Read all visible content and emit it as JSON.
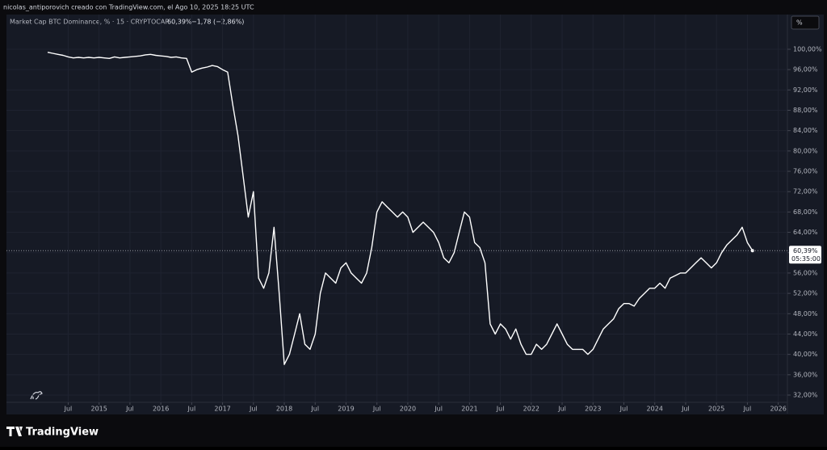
{
  "header": {
    "caption": "nicolas_antiporovich creado con TradingView.com, el Ago 10, 2025 18:25 UTC",
    "brand": "TradingView",
    "scale_button": "%"
  },
  "chart_data": {
    "type": "line",
    "title": "Market Cap BTC Dominance, % · 15 · CRYPTOCAP",
    "current": {
      "value": 60.39,
      "label": "60,39%"
    },
    "change": "−1,78 (−2,86%)",
    "countdown": "05:35:00",
    "grid": true,
    "xlim": [
      "2013-07",
      "2026-02"
    ],
    "ylim": [
      31,
      105
    ],
    "xticks": [
      {
        "value": "2014-07",
        "label": "Jul"
      },
      {
        "value": "2015-01",
        "label": "2015"
      },
      {
        "value": "2015-07",
        "label": "Jul"
      },
      {
        "value": "2016-01",
        "label": "2016"
      },
      {
        "value": "2016-07",
        "label": "Jul"
      },
      {
        "value": "2017-01",
        "label": "2017"
      },
      {
        "value": "2017-07",
        "label": "Jul"
      },
      {
        "value": "2018-01",
        "label": "2018"
      },
      {
        "value": "2018-07",
        "label": "Jul"
      },
      {
        "value": "2019-01",
        "label": "2019"
      },
      {
        "value": "2019-07",
        "label": "Jul"
      },
      {
        "value": "2020-01",
        "label": "2020"
      },
      {
        "value": "2020-07",
        "label": "Jul"
      },
      {
        "value": "2021-01",
        "label": "2021"
      },
      {
        "value": "2021-07",
        "label": "Jul"
      },
      {
        "value": "2022-01",
        "label": "2022"
      },
      {
        "value": "2022-07",
        "label": "Jul"
      },
      {
        "value": "2023-01",
        "label": "2023"
      },
      {
        "value": "2023-07",
        "label": "Jul"
      },
      {
        "value": "2024-01",
        "label": "2024"
      },
      {
        "value": "2024-07",
        "label": "Jul"
      },
      {
        "value": "2025-01",
        "label": "2025"
      },
      {
        "value": "2025-07",
        "label": "Jul"
      },
      {
        "value": "2026-01",
        "label": "2026"
      }
    ],
    "yticks": [
      {
        "value": 32,
        "label": "32,00%"
      },
      {
        "value": 36,
        "label": "36,00%"
      },
      {
        "value": 40,
        "label": "40,00%"
      },
      {
        "value": 44,
        "label": "44,00%"
      },
      {
        "value": 48,
        "label": "48,00%"
      },
      {
        "value": 52,
        "label": "52,00%"
      },
      {
        "value": 56,
        "label": "56,00%"
      },
      {
        "value": 60,
        "label": "60,00%"
      },
      {
        "value": 64,
        "label": "64,00%"
      },
      {
        "value": 68,
        "label": "68,00%"
      },
      {
        "value": 72,
        "label": "72,00%"
      },
      {
        "value": 76,
        "label": "76,00%"
      },
      {
        "value": 80,
        "label": "80,00%"
      },
      {
        "value": 84,
        "label": "84,00%"
      },
      {
        "value": 88,
        "label": "88,00%"
      },
      {
        "value": 92,
        "label": "92,00%"
      },
      {
        "value": 96,
        "label": "96,00%"
      },
      {
        "value": 100,
        "label": "100,00%"
      }
    ],
    "x": [
      "2014-03",
      "2014-04",
      "2014-05",
      "2014-06",
      "2014-07",
      "2014-08",
      "2014-09",
      "2014-10",
      "2014-11",
      "2014-12",
      "2015-01",
      "2015-02",
      "2015-03",
      "2015-04",
      "2015-05",
      "2015-06",
      "2015-07",
      "2015-08",
      "2015-09",
      "2015-10",
      "2015-11",
      "2015-12",
      "2016-01",
      "2016-02",
      "2016-03",
      "2016-04",
      "2016-05",
      "2016-06",
      "2016-07",
      "2016-08",
      "2016-09",
      "2016-10",
      "2016-11",
      "2016-12",
      "2017-01",
      "2017-02",
      "2017-03",
      "2017-04",
      "2017-05",
      "2017-06",
      "2017-07",
      "2017-08",
      "2017-09",
      "2017-10",
      "2017-11",
      "2017-12",
      "2018-01",
      "2018-02",
      "2018-03",
      "2018-04",
      "2018-05",
      "2018-06",
      "2018-07",
      "2018-08",
      "2018-09",
      "2018-10",
      "2018-11",
      "2018-12",
      "2019-01",
      "2019-02",
      "2019-03",
      "2019-04",
      "2019-05",
      "2019-06",
      "2019-07",
      "2019-08",
      "2019-09",
      "2019-10",
      "2019-11",
      "2019-12",
      "2020-01",
      "2020-02",
      "2020-03",
      "2020-04",
      "2020-05",
      "2020-06",
      "2020-07",
      "2020-08",
      "2020-09",
      "2020-10",
      "2020-11",
      "2020-12",
      "2021-01",
      "2021-02",
      "2021-03",
      "2021-04",
      "2021-05",
      "2021-06",
      "2021-07",
      "2021-08",
      "2021-09",
      "2021-10",
      "2021-11",
      "2021-12",
      "2022-01",
      "2022-02",
      "2022-03",
      "2022-04",
      "2022-05",
      "2022-06",
      "2022-07",
      "2022-08",
      "2022-09",
      "2022-10",
      "2022-11",
      "2022-12",
      "2023-01",
      "2023-02",
      "2023-03",
      "2023-04",
      "2023-05",
      "2023-06",
      "2023-07",
      "2023-08",
      "2023-09",
      "2023-10",
      "2023-11",
      "2023-12",
      "2024-01",
      "2024-02",
      "2024-03",
      "2024-04",
      "2024-05",
      "2024-06",
      "2024-07",
      "2024-08",
      "2024-09",
      "2024-10",
      "2024-11",
      "2024-12",
      "2025-01",
      "2025-02",
      "2025-03",
      "2025-04",
      "2025-05",
      "2025-06",
      "2025-07",
      "2025-08"
    ],
    "series": [
      {
        "color": "#ffffff",
        "values": [
          99.4,
          99.2,
          99.0,
          98.8,
          98.5,
          98.3,
          98.4,
          98.3,
          98.4,
          98.3,
          98.4,
          98.3,
          98.2,
          98.5,
          98.3,
          98.4,
          98.5,
          98.6,
          98.7,
          98.9,
          99.0,
          98.8,
          98.7,
          98.6,
          98.4,
          98.5,
          98.3,
          98.2,
          95.5,
          96.0,
          96.3,
          96.5,
          96.8,
          96.6,
          96.0,
          95.5,
          89,
          83,
          75,
          67,
          72,
          55,
          53,
          56,
          65,
          52,
          38,
          40,
          44,
          48,
          42,
          41,
          44,
          52,
          56,
          55,
          54,
          57,
          58,
          56,
          55,
          54,
          56,
          61,
          68,
          70,
          69,
          68,
          67,
          68,
          67,
          64,
          65,
          66,
          65,
          64,
          62,
          59,
          58,
          60,
          64,
          68,
          67,
          62,
          61,
          58,
          46,
          44,
          46,
          45,
          43,
          45,
          42,
          40,
          40,
          42,
          41,
          42,
          44,
          46,
          44,
          42,
          41,
          41,
          41,
          40,
          41,
          43,
          45,
          46,
          47,
          49,
          50,
          50,
          49.5,
          51,
          52,
          53,
          53,
          54,
          53,
          55,
          55.5,
          56,
          56,
          57,
          58,
          59,
          58,
          57,
          58,
          60,
          61.5,
          62.5,
          63.5,
          65,
          62,
          60.39
        ]
      }
    ]
  }
}
